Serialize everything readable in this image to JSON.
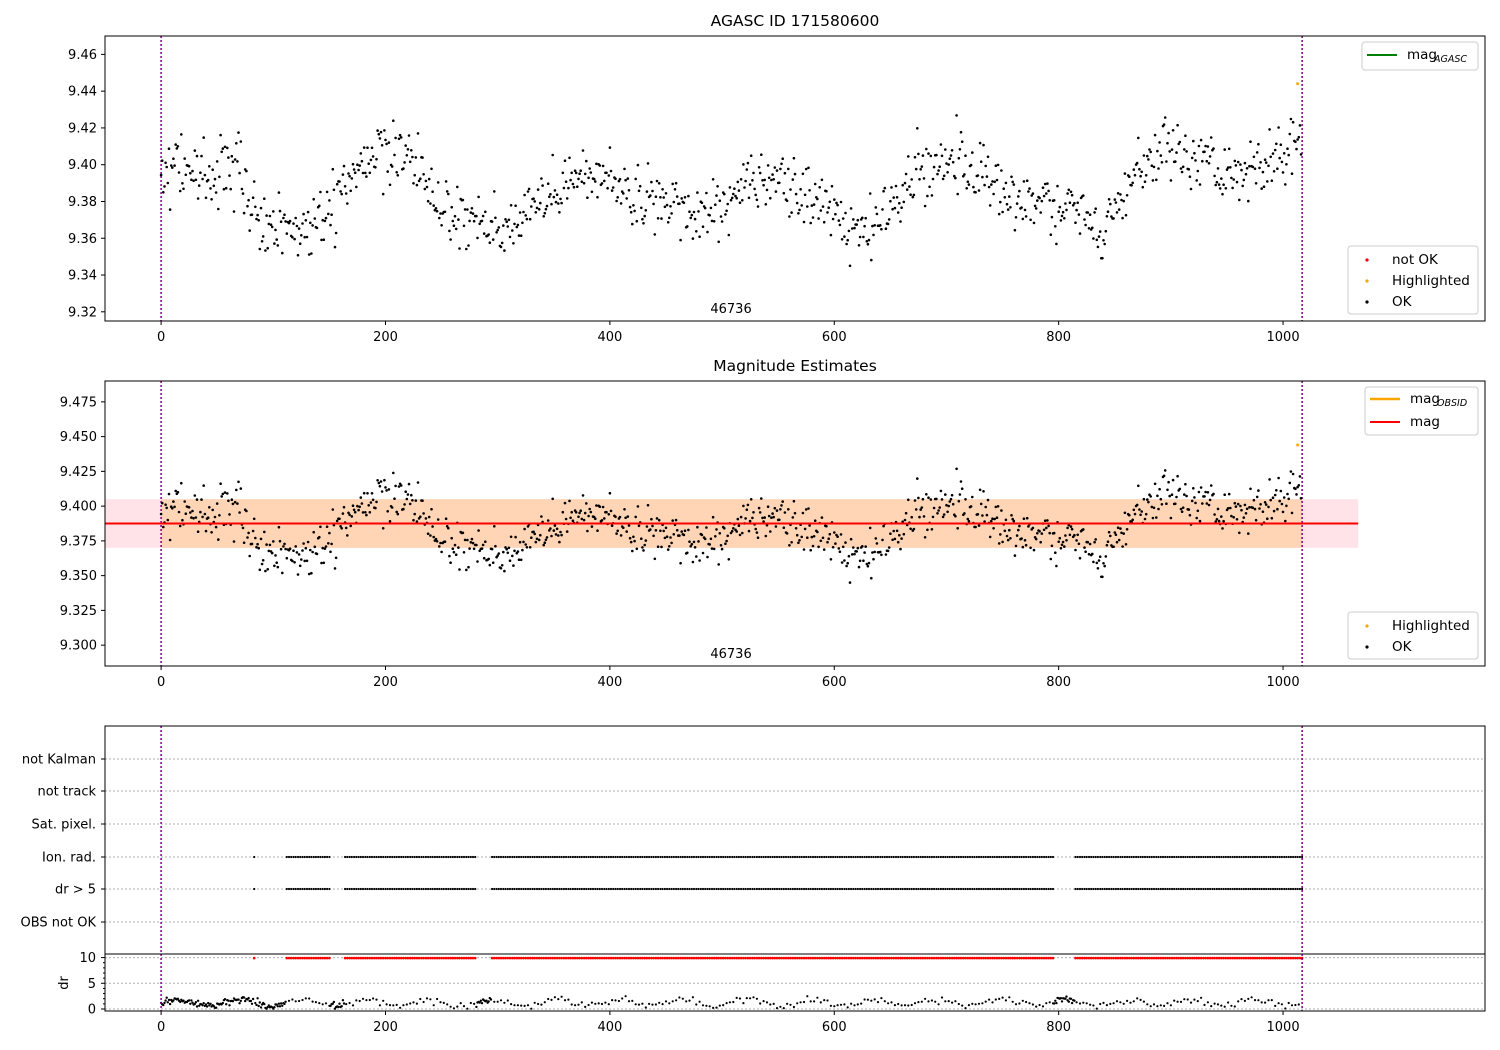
{
  "chart_data": [
    {
      "type": "scatter",
      "title": "AGASC ID 171580600",
      "xlim": [
        -50,
        1180
      ],
      "ylim": [
        9.315,
        9.47
      ],
      "xticks": [
        0,
        200,
        400,
        600,
        800,
        1000
      ],
      "yticks": [
        9.32,
        9.34,
        9.36,
        9.38,
        9.4,
        9.42,
        9.44,
        9.46
      ],
      "yformat": 2,
      "vlines": [
        0,
        1017
      ],
      "vline_color": "#800080",
      "obs_label": {
        "text": "46736",
        "x": 508
      },
      "grid": false,
      "series": [
        {
          "name": "OK",
          "color": "#000000",
          "note": "~1016 points, x = 0..1016, y = 9.345..9.432"
        },
        {
          "name": "Highlighted",
          "color": "#ffa500",
          "points": [
            [
              1013,
              9.444
            ]
          ]
        },
        {
          "name": "not OK",
          "color": "#ff0000",
          "points": []
        }
      ],
      "legend_top": {
        "placement": "top-right",
        "entries": [
          {
            "label": "mag",
            "sub": "AGASC",
            "color": "#008000"
          }
        ]
      },
      "legend_bottom": {
        "placement": "lower-right",
        "entries": [
          {
            "label": "not OK",
            "color": "#ff0000"
          },
          {
            "label": "Highlighted",
            "color": "#ffa500"
          },
          {
            "label": "OK",
            "color": "#000000"
          }
        ]
      }
    },
    {
      "type": "scatter",
      "title": "Magnitude Estimates",
      "xlim": [
        -50,
        1180
      ],
      "ylim": [
        9.285,
        9.49
      ],
      "xticks": [
        0,
        200,
        400,
        600,
        800,
        1000
      ],
      "yticks": [
        9.3,
        9.325,
        9.35,
        9.375,
        9.4,
        9.425,
        9.45,
        9.475
      ],
      "yformat": 3,
      "vlines": [
        0,
        1017
      ],
      "vline_color": "#800080",
      "obs_label": {
        "text": "46736",
        "x": 508
      },
      "mag_line": {
        "value": 9.3875,
        "x": [
          -50,
          1067
        ],
        "color": "#ff0000"
      },
      "band_mag": {
        "range": [
          9.37,
          9.405
        ],
        "x": [
          -50,
          1067
        ],
        "color": "#ffc0cb"
      },
      "band_obsid": {
        "range": [
          9.37,
          9.405
        ],
        "x": [
          0,
          1017
        ],
        "color": "#ffa500"
      },
      "grid": false,
      "series": [
        {
          "name": "OK",
          "color": "#000000",
          "note": "same points as top panel"
        },
        {
          "name": "Highlighted",
          "color": "#ffa500",
          "points": [
            [
              1013,
              9.444
            ]
          ]
        }
      ],
      "legend_top": {
        "placement": "top-right",
        "entries": [
          {
            "label": "mag",
            "sub": "OBSID",
            "color": "#ffa500"
          },
          {
            "label": "mag",
            "sub": "",
            "color": "#ff0000"
          }
        ]
      },
      "legend_bottom": {
        "placement": "lower-right",
        "entries": [
          {
            "label": "Highlighted",
            "color": "#ffa500"
          },
          {
            "label": "OK",
            "color": "#000000"
          }
        ]
      }
    },
    {
      "type": "scatter",
      "title": "",
      "xlim": [
        -50,
        1180
      ],
      "xticks": [
        0,
        200,
        400,
        600,
        800,
        1000
      ],
      "flag_rows": [
        "not Kalman",
        "not track",
        "Sat. pixel.",
        "Ion. rad.",
        "dr > 5",
        "OBS not OK"
      ],
      "flag_segments_ion_rad": [
        [
          83,
          84
        ],
        [
          112,
          150
        ],
        [
          164,
          280
        ],
        [
          295,
          795
        ],
        [
          815,
          1017
        ]
      ],
      "flag_segments_dr5": [
        [
          83,
          84
        ],
        [
          112,
          150
        ],
        [
          164,
          280
        ],
        [
          295,
          795
        ],
        [
          815,
          1017
        ]
      ],
      "dr": {
        "ylabel": "dr",
        "yticks": [
          0,
          5,
          10
        ],
        "ylim": [
          0,
          10.5
        ],
        "clipped_value": 10,
        "clipped_color": "#ff0000",
        "clipped_segments": [
          [
            83,
            84
          ],
          [
            112,
            150
          ],
          [
            164,
            280
          ],
          [
            295,
            795
          ],
          [
            815,
            1017
          ]
        ],
        "note": "dr values ~0-2.5 for unflagged points"
      },
      "vlines": [
        0,
        1017
      ],
      "vline_color": "#800080"
    }
  ]
}
